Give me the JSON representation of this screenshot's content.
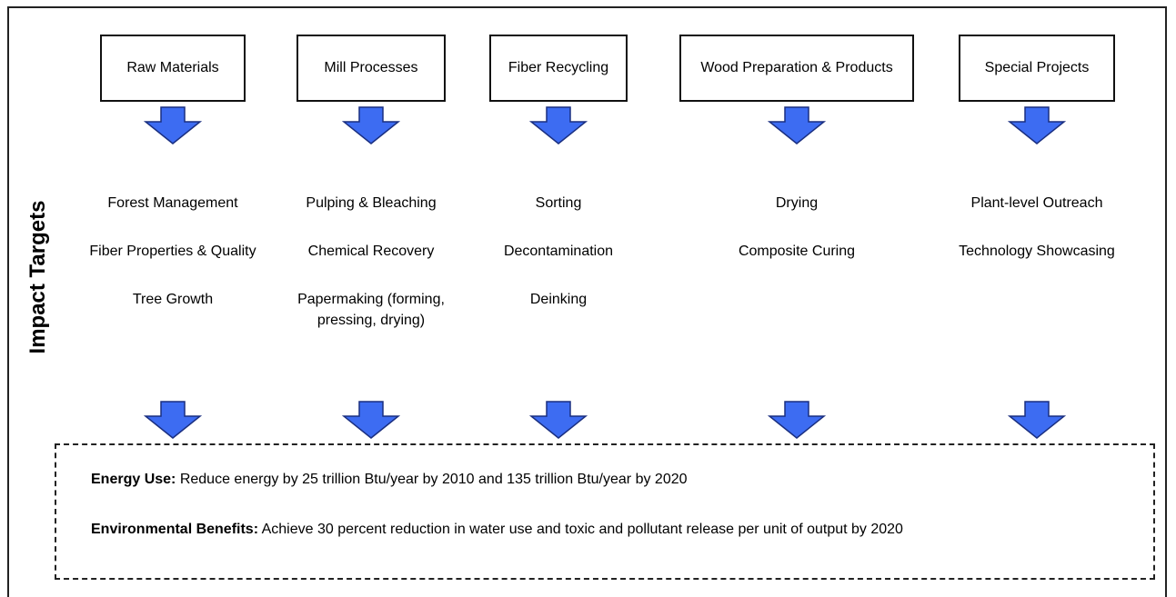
{
  "side_label": "Impact Targets",
  "columns": [
    {
      "title": "Raw Materials",
      "items": [
        "Forest Management",
        "Fiber Properties & Quality",
        "Tree Growth"
      ]
    },
    {
      "title": "Mill Processes",
      "items": [
        "Pulping & Bleaching",
        "Chemical Recovery",
        "Papermaking (forming, pressing, drying)"
      ]
    },
    {
      "title": "Fiber Recycling",
      "items": [
        "Sorting",
        "Decontamination",
        "Deinking"
      ]
    },
    {
      "title": "Wood Preparation & Products",
      "items": [
        "Drying",
        "Composite Curing"
      ]
    },
    {
      "title": "Special Projects",
      "items": [
        "Plant-level Outreach",
        "Technology Showcasing"
      ]
    }
  ],
  "targets": [
    {
      "label": "Energy Use:",
      "text": "Reduce energy by 25 trillion Btu/year by 2010 and 135 trillion Btu/year by 2020"
    },
    {
      "label": "Environmental Benefits:",
      "text": "Achieve 30 percent reduction in water use and toxic and pollutant release per unit of output by 2020"
    }
  ]
}
